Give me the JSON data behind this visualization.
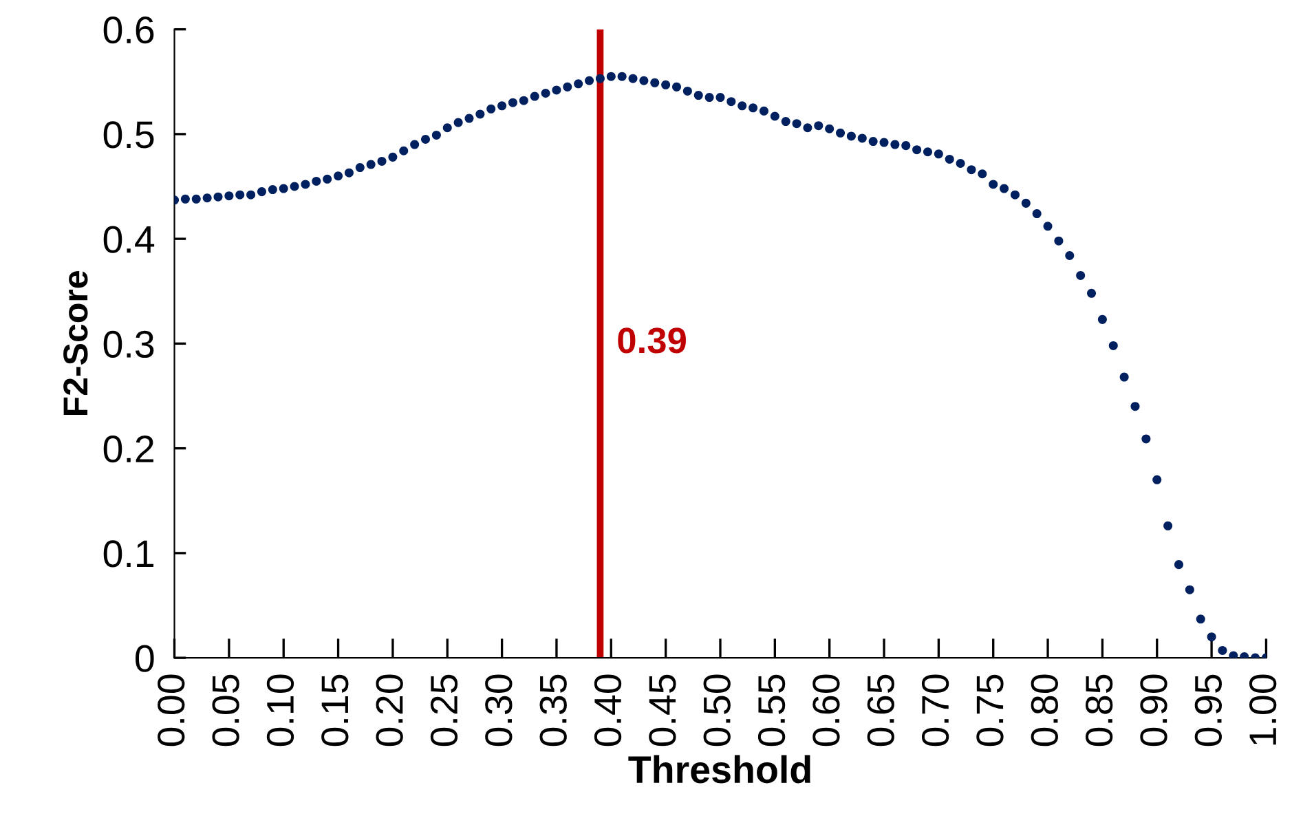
{
  "chart_data": {
    "type": "scatter",
    "xlabel": "Threshold",
    "ylabel": "F2-Score",
    "marker": "circle",
    "grid": false,
    "legend": false,
    "xlim": [
      0,
      1
    ],
    "ylim": [
      0,
      0.6
    ],
    "xticks": [
      {
        "value": 0,
        "label": "0.00"
      },
      {
        "value": 0.05,
        "label": "0.05"
      },
      {
        "value": 0.1,
        "label": "0.10"
      },
      {
        "value": 0.15,
        "label": "0.15"
      },
      {
        "value": 0.2,
        "label": "0.20"
      },
      {
        "value": 0.25,
        "label": "0.25"
      },
      {
        "value": 0.3,
        "label": "0.30"
      },
      {
        "value": 0.35,
        "label": "0.35"
      },
      {
        "value": 0.4,
        "label": "0.40"
      },
      {
        "value": 0.45,
        "label": "0.45"
      },
      {
        "value": 0.5,
        "label": "0.50"
      },
      {
        "value": 0.55,
        "label": "0.55"
      },
      {
        "value": 0.6,
        "label": "0.60"
      },
      {
        "value": 0.65,
        "label": "0.65"
      },
      {
        "value": 0.7,
        "label": "0.70"
      },
      {
        "value": 0.75,
        "label": "0.75"
      },
      {
        "value": 0.8,
        "label": "0.80"
      },
      {
        "value": 0.85,
        "label": "0.85"
      },
      {
        "value": 0.9,
        "label": "0.90"
      },
      {
        "value": 0.95,
        "label": "0.95"
      },
      {
        "value": 1,
        "label": "1.00"
      }
    ],
    "yticks": [
      0,
      0.1,
      0.2,
      0.3,
      0.4,
      0.5,
      0.6
    ],
    "ref_lines": [
      {
        "axis": "x",
        "value": 0.39,
        "label": "0.39",
        "color": "#c00000"
      }
    ],
    "series": [
      {
        "color": "#002060",
        "x": [
          0,
          0.01,
          0.02,
          0.03,
          0.04,
          0.05,
          0.06,
          0.07,
          0.08,
          0.09,
          0.1,
          0.11,
          0.12,
          0.13,
          0.14,
          0.15,
          0.16,
          0.17,
          0.18,
          0.19,
          0.2,
          0.21,
          0.22,
          0.23,
          0.24,
          0.25,
          0.26,
          0.27,
          0.28,
          0.29,
          0.3,
          0.31,
          0.32,
          0.33,
          0.34,
          0.35,
          0.36,
          0.37,
          0.38,
          0.39,
          0.4,
          0.41,
          0.42,
          0.43,
          0.44,
          0.45,
          0.46,
          0.47,
          0.48,
          0.49,
          0.5,
          0.51,
          0.52,
          0.53,
          0.54,
          0.55,
          0.56,
          0.57,
          0.58,
          0.59,
          0.6,
          0.61,
          0.62,
          0.63,
          0.64,
          0.65,
          0.66,
          0.67,
          0.68,
          0.69,
          0.7,
          0.71,
          0.72,
          0.73,
          0.74,
          0.75,
          0.76,
          0.77,
          0.78,
          0.79,
          0.8,
          0.81,
          0.82,
          0.83,
          0.84,
          0.85,
          0.86,
          0.87,
          0.88,
          0.89,
          0.9,
          0.91,
          0.92,
          0.93,
          0.94,
          0.95,
          0.96,
          0.97,
          0.98,
          0.99,
          1
        ],
        "values": [
          0.437,
          0.438,
          0.438,
          0.439,
          0.44,
          0.441,
          0.442,
          0.442,
          0.445,
          0.447,
          0.448,
          0.45,
          0.452,
          0.455,
          0.457,
          0.46,
          0.463,
          0.468,
          0.471,
          0.474,
          0.478,
          0.484,
          0.49,
          0.495,
          0.499,
          0.506,
          0.511,
          0.515,
          0.519,
          0.524,
          0.527,
          0.53,
          0.532,
          0.536,
          0.539,
          0.542,
          0.545,
          0.548,
          0.551,
          0.553,
          0.555,
          0.555,
          0.553,
          0.551,
          0.549,
          0.547,
          0.545,
          0.541,
          0.537,
          0.535,
          0.535,
          0.531,
          0.527,
          0.525,
          0.522,
          0.517,
          0.512,
          0.51,
          0.506,
          0.508,
          0.505,
          0.501,
          0.498,
          0.496,
          0.493,
          0.492,
          0.49,
          0.489,
          0.485,
          0.483,
          0.481,
          0.476,
          0.472,
          0.466,
          0.462,
          0.452,
          0.448,
          0.442,
          0.434,
          0.424,
          0.412,
          0.398,
          0.384,
          0.365,
          0.348,
          0.323,
          0.298,
          0.268,
          0.24,
          0.209,
          0.17,
          0.126,
          0.089,
          0.065,
          0.037,
          0.02,
          0.007,
          0.002,
          0.001,
          0,
          0
        ]
      }
    ]
  }
}
